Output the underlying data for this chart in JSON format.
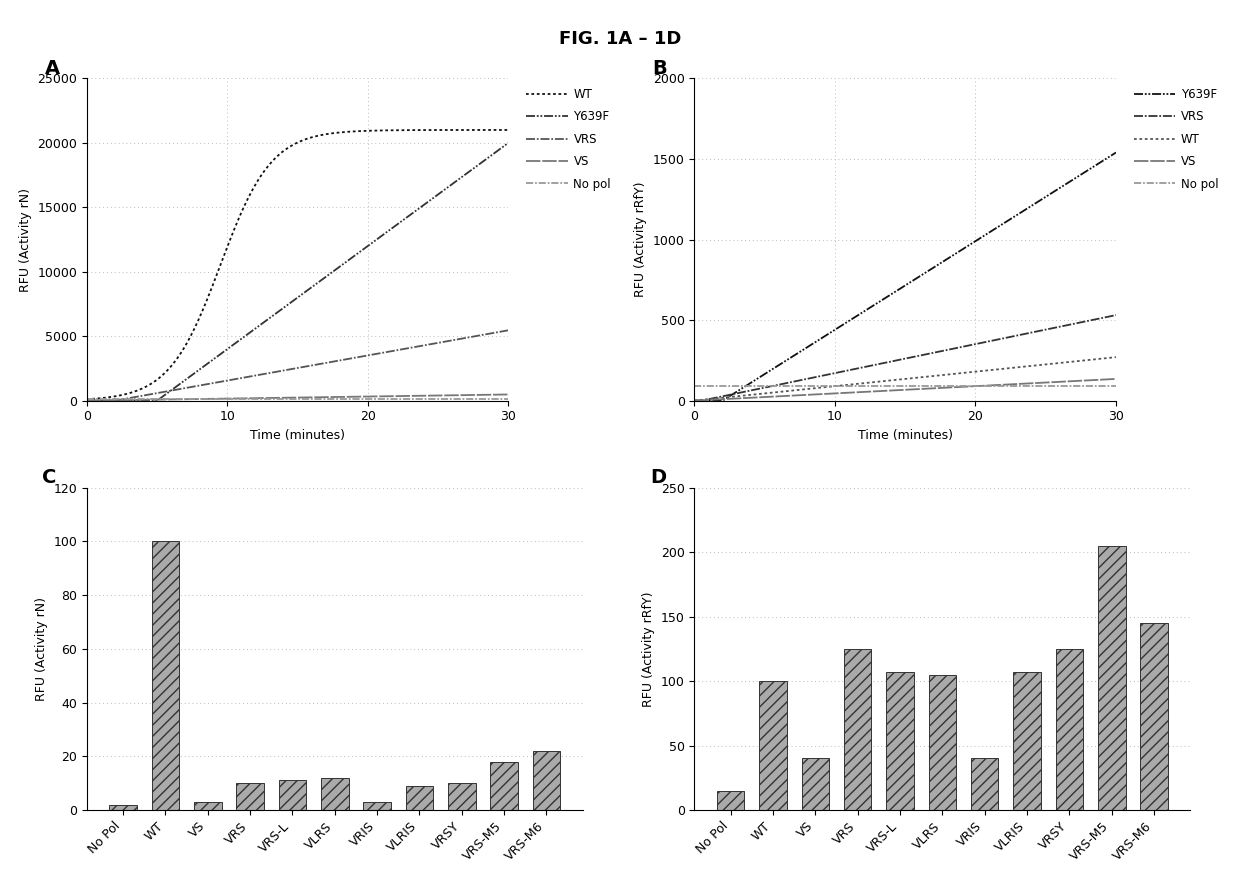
{
  "title": "FIG. 1A – 1D",
  "panel_A": {
    "label": "A",
    "xlabel": "Time (minutes)",
    "ylabel": "RFU (Activity rN)",
    "xlim": [
      0,
      30
    ],
    "ylim": [
      0,
      25000
    ],
    "yticks": [
      0,
      5000,
      10000,
      15000,
      20000,
      25000
    ],
    "xticks": [
      0,
      10,
      20,
      30
    ],
    "series": [
      {
        "name": "WT",
        "style": "dotted",
        "color": "#111111",
        "shape": "sigmoid",
        "p1": 21000,
        "p2": 0.55,
        "p3": 9.5
      },
      {
        "name": "Y639F",
        "style": "dashdotdot",
        "color": "#333333",
        "shape": "linear_lag",
        "p1": 800,
        "p2": 5.0,
        "p3": 0
      },
      {
        "name": "VRS",
        "style": "dashdot",
        "color": "#555555",
        "shape": "linear_lag",
        "p1": 195,
        "p2": 2.0,
        "p3": 0
      },
      {
        "name": "VS",
        "style": "densedot",
        "color": "#777777",
        "shape": "linear_slow",
        "p1": 16,
        "p2": 0,
        "p3": 0
      },
      {
        "name": "No pol",
        "style": "longdash",
        "color": "#999999",
        "shape": "flat",
        "p1": 100,
        "p2": 0,
        "p3": 0
      }
    ],
    "legend_order": [
      "WT",
      "Y639F",
      "VRS",
      "VS",
      "No pol"
    ]
  },
  "panel_B": {
    "label": "B",
    "xlabel": "Time (minutes)",
    "ylabel": "RFU (Activity rRfY)",
    "xlim": [
      0,
      30
    ],
    "ylim": [
      0,
      2000
    ],
    "yticks": [
      0,
      500,
      1000,
      1500,
      2000
    ],
    "xticks": [
      0,
      10,
      20,
      30
    ],
    "series": [
      {
        "name": "Y639F",
        "style": "dashdotdot",
        "color": "#111111",
        "shape": "linear_lag",
        "p1": 55,
        "p2": 2.0,
        "p3": 0
      },
      {
        "name": "VRS",
        "style": "dashdot",
        "color": "#333333",
        "shape": "linear_lag",
        "p1": 18,
        "p2": 0.5,
        "p3": 0
      },
      {
        "name": "WT",
        "style": "dotted",
        "color": "#555555",
        "shape": "linear_slow",
        "p1": 9,
        "p2": 0,
        "p3": 0
      },
      {
        "name": "VS",
        "style": "densedot",
        "color": "#777777",
        "shape": "linear_slow",
        "p1": 4.5,
        "p2": 0,
        "p3": 0
      },
      {
        "name": "No pol",
        "style": "longdash",
        "color": "#999999",
        "shape": "flat",
        "p1": 90,
        "p2": 0,
        "p3": 0
      }
    ],
    "legend_order": [
      "Y639F",
      "VRS",
      "WT",
      "VS",
      "No pol"
    ]
  },
  "panel_C": {
    "label": "C",
    "ylabel": "RFU (Activity rN)",
    "ylim": [
      0,
      120
    ],
    "yticks": [
      0,
      20,
      40,
      60,
      80,
      100,
      120
    ],
    "categories": [
      "No Pol",
      "WT",
      "VS",
      "VRS",
      "VRS-L",
      "VLRS",
      "VRIS",
      "VLRIS",
      "VRSY",
      "VRS-M5",
      "VRS-M6"
    ],
    "values": [
      2,
      100,
      3,
      10,
      11,
      12,
      3,
      9,
      10,
      18,
      22
    ]
  },
  "panel_D": {
    "label": "D",
    "ylabel": "RFU (Activity rRfY)",
    "ylim": [
      0,
      250
    ],
    "yticks": [
      0,
      50,
      100,
      150,
      200,
      250
    ],
    "categories": [
      "No Pol",
      "WT",
      "VS",
      "VRS",
      "VRS-L",
      "VLRS",
      "VRIS",
      "VLRIS",
      "VRSY",
      "VRS-M5",
      "VRS-M6"
    ],
    "values": [
      15,
      100,
      40,
      125,
      107,
      105,
      40,
      107,
      125,
      205,
      145
    ]
  },
  "bar_facecolor": "#aaaaaa",
  "bar_hatch": "///",
  "background_color": "#ffffff",
  "grid_color": "#bbbbbb",
  "title_fontsize": 13,
  "label_fontsize": 14,
  "axis_fontsize": 9,
  "tick_fontsize": 9
}
